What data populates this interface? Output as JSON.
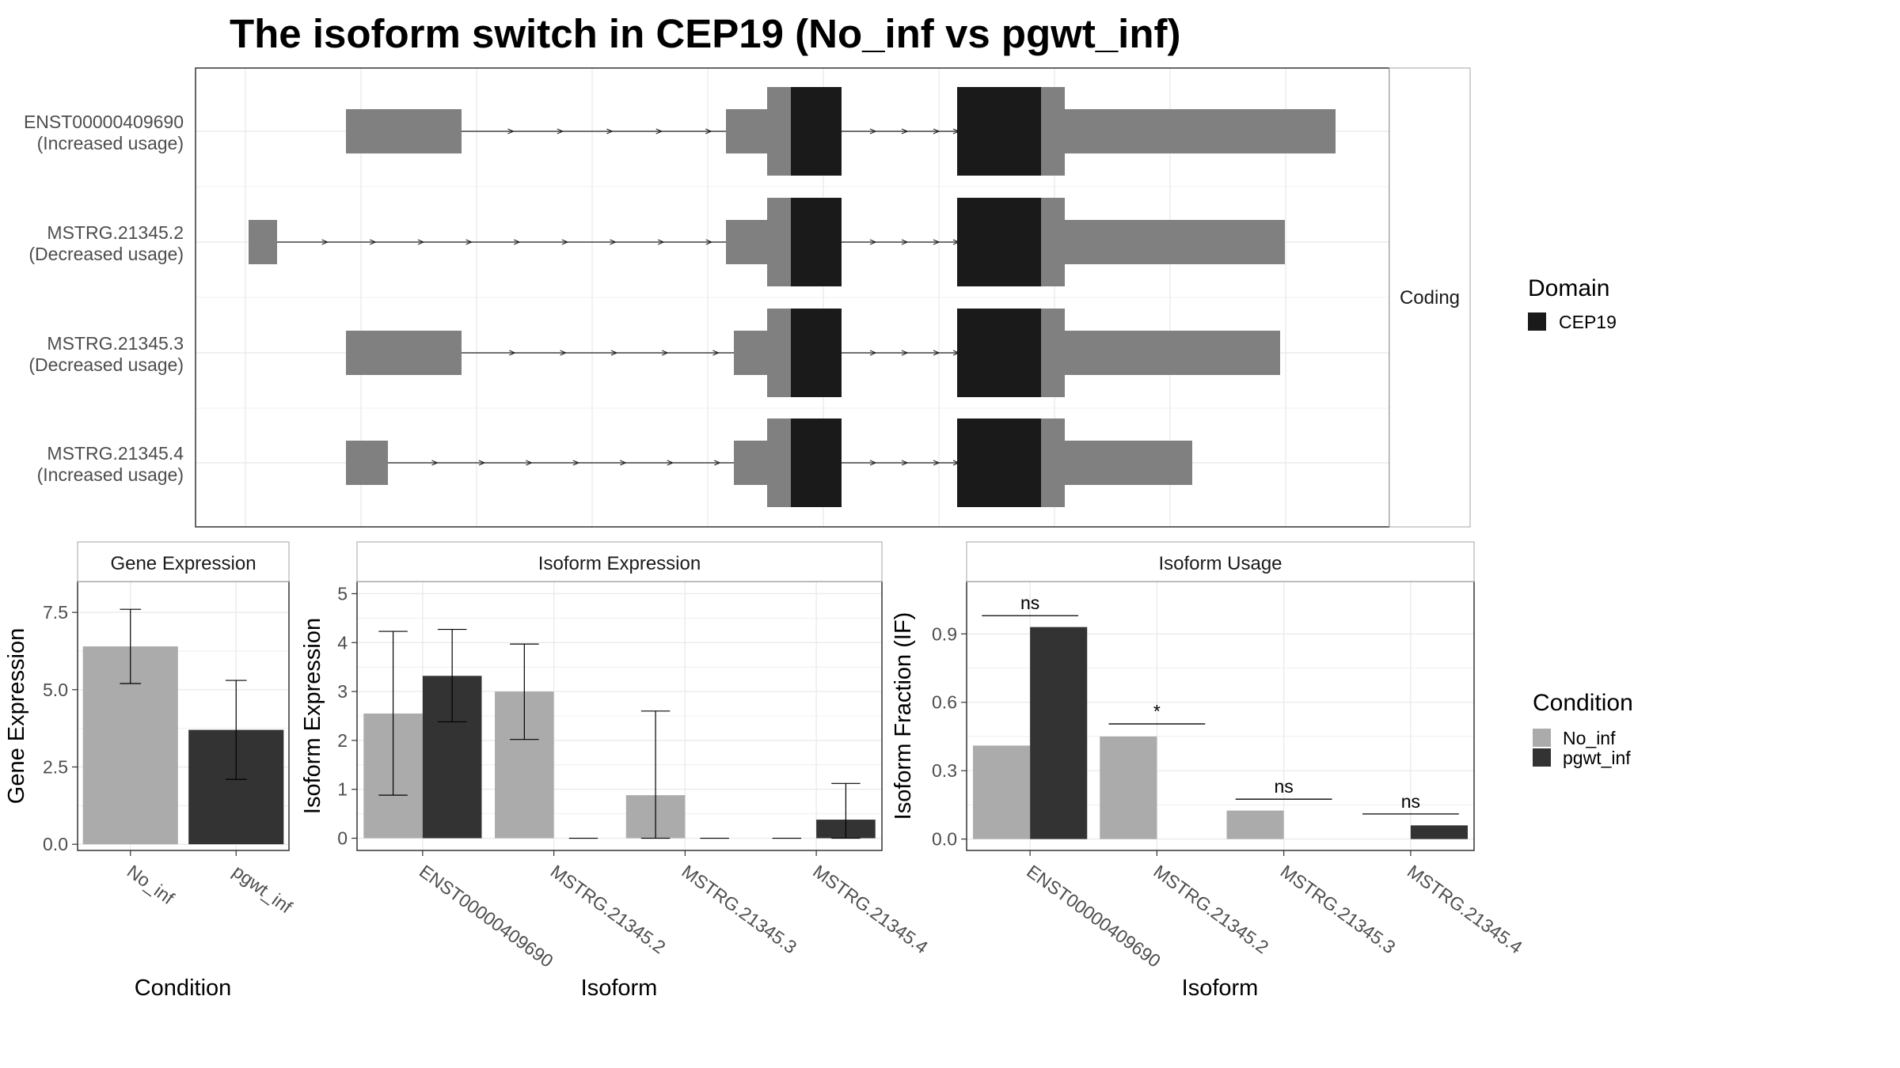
{
  "title": "The isoform switch in CEP19 (No_inf vs pgwt_inf)",
  "colors": {
    "utr": "#808080",
    "cds": "#1a1a1a",
    "No_inf": "#ababab",
    "pgwt_inf": "#333333",
    "grid": "#ebebeb",
    "panel_border": "#333333",
    "strip_border": "#b3b3b3"
  },
  "transcript_panel": {
    "strip_label": "Coding",
    "transcripts": [
      {
        "id": "ENST00000409690",
        "usage": "(Increased usage)"
      },
      {
        "id": "MSTRG.21345.2",
        "usage": "(Decreased usage)"
      },
      {
        "id": "MSTRG.21345.3",
        "usage": "(Decreased usage)"
      },
      {
        "id": "MSTRG.21345.4",
        "usage": "(Increased usage)"
      }
    ],
    "domain_legend": {
      "title": "Domain",
      "items": [
        {
          "label": "CEP19",
          "color": "#1a1a1a"
        }
      ]
    }
  },
  "condition_legend": {
    "title": "Condition",
    "items": [
      {
        "label": "No_inf",
        "color": "#ababab"
      },
      {
        "label": "pgwt_inf",
        "color": "#333333"
      }
    ]
  },
  "chart_data": [
    {
      "type": "bar",
      "title": "Gene Expression",
      "xlabel": "Condition",
      "ylabel": "Gene Expression",
      "categories": [
        "No_inf",
        "pgwt_inf"
      ],
      "values": [
        6.4,
        3.7
      ],
      "error_low": [
        5.2,
        2.1
      ],
      "error_high": [
        7.6,
        5.3
      ],
      "ylim": [
        -0.2,
        8.5
      ],
      "yticks": [
        0.0,
        2.5,
        5.0,
        7.5
      ],
      "ytick_labels": [
        "0.0",
        "2.5",
        "5.0",
        "7.5"
      ],
      "grid": true
    },
    {
      "type": "bar",
      "title": "Isoform Expression",
      "xlabel": "Isoform",
      "ylabel": "Isoform Expression",
      "categories": [
        "ENST00000409690",
        "MSTRG.21345.2",
        "MSTRG.21345.3",
        "MSTRG.21345.4"
      ],
      "series": [
        {
          "name": "No_inf",
          "values": [
            2.55,
            3.0,
            0.88,
            0.0
          ],
          "error_low": [
            0.88,
            2.02,
            0.0,
            0.0
          ],
          "error_high": [
            4.23,
            3.97,
            2.6,
            0.0
          ]
        },
        {
          "name": "pgwt_inf",
          "values": [
            3.32,
            0.0,
            0.0,
            0.38
          ],
          "error_low": [
            2.38,
            0.0,
            0.0,
            0.0
          ],
          "error_high": [
            4.27,
            0.0,
            0.0,
            1.12
          ]
        }
      ],
      "ylim": [
        -0.25,
        5.25
      ],
      "yticks": [
        0,
        1,
        2,
        3,
        4,
        5
      ],
      "ytick_labels": [
        "0",
        "1",
        "2",
        "3",
        "4",
        "5"
      ],
      "grid": true
    },
    {
      "type": "bar",
      "title": "Isoform Usage",
      "xlabel": "Isoform",
      "ylabel": "Isoform Fraction (IF)",
      "categories": [
        "ENST00000409690",
        "MSTRG.21345.2",
        "MSTRG.21345.3",
        "MSTRG.21345.4"
      ],
      "series": [
        {
          "name": "No_inf",
          "values": [
            0.41,
            0.45,
            0.125,
            0.0
          ]
        },
        {
          "name": "pgwt_inf",
          "values": [
            0.93,
            0.0,
            0.0,
            0.06
          ]
        }
      ],
      "significance": [
        {
          "label": "ns",
          "y": 0.98
        },
        {
          "label": "*",
          "y": 0.505
        },
        {
          "label": "ns",
          "y": 0.175
        },
        {
          "label": "ns",
          "y": 0.11
        }
      ],
      "ylim": [
        -0.05,
        1.13
      ],
      "yticks": [
        0.0,
        0.3,
        0.6,
        0.9
      ],
      "ytick_labels": [
        "0.0",
        "0.3",
        "0.6",
        "0.9"
      ],
      "grid": true
    }
  ]
}
